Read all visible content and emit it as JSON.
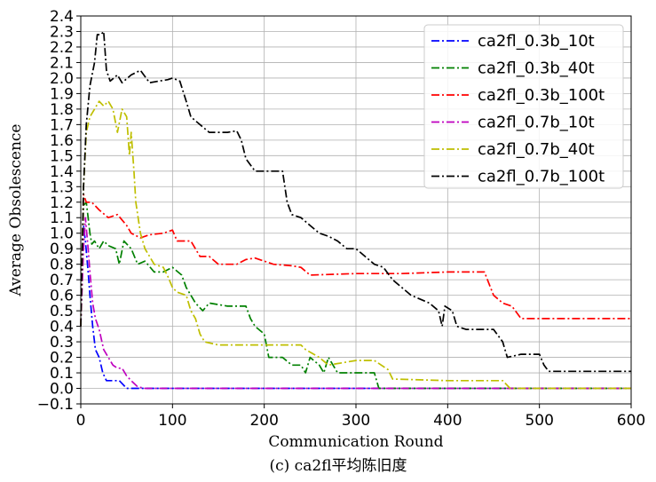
{
  "chart_data": {
    "type": "line",
    "xlabel": "Communication Round",
    "ylabel": "Average Obsolescence",
    "caption": "(c) ca2fl平均陈旧度",
    "xlim": [
      0,
      600
    ],
    "ylim": [
      -0.1,
      2.4
    ],
    "xticks": [
      0,
      100,
      200,
      300,
      400,
      500,
      600
    ],
    "yticks": [
      -0.1,
      0.0,
      0.1,
      0.2,
      0.3,
      0.4,
      0.5,
      0.6,
      0.7,
      0.8,
      0.9,
      1.0,
      1.1,
      1.2,
      1.3,
      1.4,
      1.5,
      1.6,
      1.7,
      1.8,
      1.9,
      2.0,
      2.1,
      2.2,
      2.3,
      2.4
    ],
    "grid": true,
    "legend_position": "top-right",
    "line_style": "dash-dot",
    "series": [
      {
        "name": "ca2fl_0.3b_10t",
        "color": "#0000ff",
        "points": [
          [
            0,
            0.4
          ],
          [
            3,
            1.05
          ],
          [
            5,
            0.95
          ],
          [
            8,
            0.75
          ],
          [
            10,
            0.6
          ],
          [
            13,
            0.4
          ],
          [
            16,
            0.25
          ],
          [
            20,
            0.2
          ],
          [
            24,
            0.1
          ],
          [
            28,
            0.05
          ],
          [
            35,
            0.05
          ],
          [
            42,
            0.05
          ],
          [
            50,
            0.0
          ],
          [
            60,
            0.0
          ],
          [
            100,
            0.0
          ],
          [
            200,
            0.0
          ],
          [
            300,
            0.0
          ],
          [
            400,
            0.0
          ],
          [
            500,
            0.0
          ],
          [
            600,
            0.0
          ]
        ]
      },
      {
        "name": "ca2fl_0.3b_40t",
        "color": "#008000",
        "points": [
          [
            0,
            0.4
          ],
          [
            3,
            1.18
          ],
          [
            6,
            1.2
          ],
          [
            8,
            1.1
          ],
          [
            10,
            1.0
          ],
          [
            12,
            0.93
          ],
          [
            15,
            0.95
          ],
          [
            20,
            0.9
          ],
          [
            25,
            0.95
          ],
          [
            30,
            0.92
          ],
          [
            38,
            0.9
          ],
          [
            42,
            0.8
          ],
          [
            47,
            0.95
          ],
          [
            55,
            0.9
          ],
          [
            62,
            0.8
          ],
          [
            70,
            0.82
          ],
          [
            80,
            0.75
          ],
          [
            90,
            0.75
          ],
          [
            100,
            0.78
          ],
          [
            110,
            0.73
          ],
          [
            115,
            0.65
          ],
          [
            125,
            0.55
          ],
          [
            133,
            0.5
          ],
          [
            140,
            0.55
          ],
          [
            160,
            0.53
          ],
          [
            180,
            0.53
          ],
          [
            185,
            0.45
          ],
          [
            190,
            0.4
          ],
          [
            200,
            0.35
          ],
          [
            205,
            0.2
          ],
          [
            220,
            0.2
          ],
          [
            230,
            0.15
          ],
          [
            240,
            0.15
          ],
          [
            245,
            0.1
          ],
          [
            250,
            0.2
          ],
          [
            260,
            0.15
          ],
          [
            265,
            0.1
          ],
          [
            270,
            0.2
          ],
          [
            280,
            0.1
          ],
          [
            320,
            0.1
          ],
          [
            325,
            0.0
          ],
          [
            400,
            0.0
          ],
          [
            500,
            0.0
          ],
          [
            600,
            0.0
          ]
        ]
      },
      {
        "name": "ca2fl_0.3b_100t",
        "color": "#ff0000",
        "points": [
          [
            0,
            0.4
          ],
          [
            3,
            1.25
          ],
          [
            6,
            1.2
          ],
          [
            12,
            1.2
          ],
          [
            20,
            1.15
          ],
          [
            30,
            1.1
          ],
          [
            40,
            1.12
          ],
          [
            50,
            1.05
          ],
          [
            55,
            1.0
          ],
          [
            65,
            0.97
          ],
          [
            75,
            0.99
          ],
          [
            90,
            1.0
          ],
          [
            100,
            1.02
          ],
          [
            105,
            0.95
          ],
          [
            120,
            0.95
          ],
          [
            130,
            0.85
          ],
          [
            140,
            0.85
          ],
          [
            150,
            0.8
          ],
          [
            170,
            0.8
          ],
          [
            180,
            0.83
          ],
          [
            190,
            0.84
          ],
          [
            200,
            0.82
          ],
          [
            210,
            0.8
          ],
          [
            230,
            0.79
          ],
          [
            240,
            0.78
          ],
          [
            250,
            0.73
          ],
          [
            300,
            0.74
          ],
          [
            350,
            0.74
          ],
          [
            400,
            0.75
          ],
          [
            440,
            0.75
          ],
          [
            450,
            0.6
          ],
          [
            460,
            0.55
          ],
          [
            470,
            0.53
          ],
          [
            480,
            0.45
          ],
          [
            520,
            0.45
          ],
          [
            560,
            0.45
          ],
          [
            600,
            0.45
          ]
        ]
      },
      {
        "name": "ca2fl_0.7b_10t",
        "color": "#bf00bf",
        "points": [
          [
            0,
            0.4
          ],
          [
            3,
            0.9
          ],
          [
            5,
            1.1
          ],
          [
            8,
            0.9
          ],
          [
            10,
            0.75
          ],
          [
            13,
            0.55
          ],
          [
            16,
            0.45
          ],
          [
            20,
            0.38
          ],
          [
            25,
            0.25
          ],
          [
            30,
            0.2
          ],
          [
            35,
            0.15
          ],
          [
            40,
            0.13
          ],
          [
            45,
            0.13
          ],
          [
            50,
            0.08
          ],
          [
            55,
            0.05
          ],
          [
            62,
            0.01
          ],
          [
            70,
            0.0
          ],
          [
            100,
            0.0
          ],
          [
            200,
            0.0
          ],
          [
            300,
            0.0
          ],
          [
            400,
            0.0
          ],
          [
            500,
            0.0
          ],
          [
            600,
            0.0
          ]
        ]
      },
      {
        "name": "ca2fl_0.7b_40t",
        "color": "#bfbf00",
        "points": [
          [
            0,
            0.4
          ],
          [
            3,
            1.3
          ],
          [
            6,
            1.65
          ],
          [
            10,
            1.75
          ],
          [
            15,
            1.8
          ],
          [
            20,
            1.85
          ],
          [
            25,
            1.82
          ],
          [
            30,
            1.85
          ],
          [
            35,
            1.8
          ],
          [
            40,
            1.65
          ],
          [
            45,
            1.8
          ],
          [
            50,
            1.75
          ],
          [
            53,
            1.5
          ],
          [
            55,
            1.65
          ],
          [
            58,
            1.4
          ],
          [
            60,
            1.2
          ],
          [
            65,
            1.0
          ],
          [
            70,
            0.9
          ],
          [
            75,
            0.85
          ],
          [
            80,
            0.8
          ],
          [
            90,
            0.78
          ],
          [
            95,
            0.72
          ],
          [
            100,
            0.65
          ],
          [
            105,
            0.62
          ],
          [
            115,
            0.6
          ],
          [
            120,
            0.5
          ],
          [
            125,
            0.45
          ],
          [
            130,
            0.35
          ],
          [
            135,
            0.3
          ],
          [
            150,
            0.28
          ],
          [
            200,
            0.28
          ],
          [
            240,
            0.28
          ],
          [
            245,
            0.25
          ],
          [
            260,
            0.2
          ],
          [
            270,
            0.15
          ],
          [
            300,
            0.18
          ],
          [
            320,
            0.18
          ],
          [
            335,
            0.12
          ],
          [
            340,
            0.06
          ],
          [
            400,
            0.05
          ],
          [
            460,
            0.05
          ],
          [
            468,
            0.0
          ],
          [
            500,
            0.0
          ],
          [
            600,
            0.0
          ]
        ]
      },
      {
        "name": "ca2fl_0.7b_100t",
        "color": "#000000",
        "points": [
          [
            0,
            0.4
          ],
          [
            3,
            1.3
          ],
          [
            6,
            1.7
          ],
          [
            10,
            1.95
          ],
          [
            15,
            2.1
          ],
          [
            18,
            2.28
          ],
          [
            22,
            2.28
          ],
          [
            25,
            2.3
          ],
          [
            28,
            2.05
          ],
          [
            32,
            1.98
          ],
          [
            40,
            2.02
          ],
          [
            45,
            1.97
          ],
          [
            55,
            2.02
          ],
          [
            65,
            2.05
          ],
          [
            75,
            1.97
          ],
          [
            85,
            1.98
          ],
          [
            95,
            1.99
          ],
          [
            100,
            2.0
          ],
          [
            108,
            1.98
          ],
          [
            115,
            1.85
          ],
          [
            120,
            1.75
          ],
          [
            130,
            1.7
          ],
          [
            140,
            1.65
          ],
          [
            150,
            1.65
          ],
          [
            160,
            1.65
          ],
          [
            170,
            1.66
          ],
          [
            175,
            1.6
          ],
          [
            180,
            1.48
          ],
          [
            190,
            1.4
          ],
          [
            200,
            1.4
          ],
          [
            210,
            1.4
          ],
          [
            220,
            1.4
          ],
          [
            225,
            1.2
          ],
          [
            230,
            1.12
          ],
          [
            240,
            1.1
          ],
          [
            250,
            1.05
          ],
          [
            260,
            1.0
          ],
          [
            270,
            0.98
          ],
          [
            280,
            0.95
          ],
          [
            290,
            0.9
          ],
          [
            300,
            0.9
          ],
          [
            310,
            0.85
          ],
          [
            320,
            0.8
          ],
          [
            330,
            0.78
          ],
          [
            340,
            0.7
          ],
          [
            350,
            0.65
          ],
          [
            360,
            0.6
          ],
          [
            380,
            0.55
          ],
          [
            390,
            0.5
          ],
          [
            394,
            0.4
          ],
          [
            397,
            0.53
          ],
          [
            405,
            0.5
          ],
          [
            410,
            0.4
          ],
          [
            420,
            0.38
          ],
          [
            450,
            0.38
          ],
          [
            460,
            0.3
          ],
          [
            465,
            0.2
          ],
          [
            480,
            0.22
          ],
          [
            500,
            0.22
          ],
          [
            505,
            0.15
          ],
          [
            510,
            0.11
          ],
          [
            540,
            0.11
          ],
          [
            570,
            0.11
          ],
          [
            600,
            0.11
          ]
        ]
      }
    ]
  }
}
